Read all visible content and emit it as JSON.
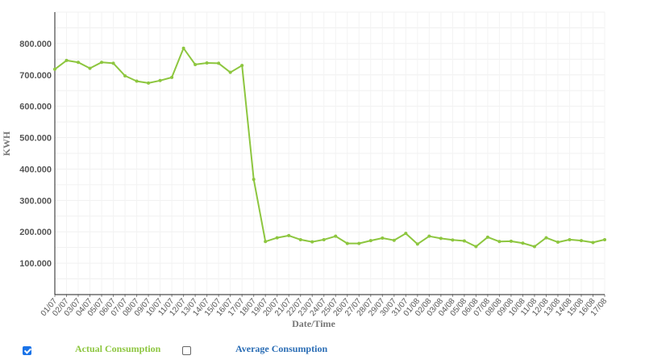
{
  "chart_data": {
    "type": "line",
    "xlabel": "Date/Time",
    "ylabel": "KWH",
    "ylim": [
      0,
      900000
    ],
    "yticks": [
      100000,
      200000,
      300000,
      400000,
      500000,
      600000,
      700000,
      800000
    ],
    "ytick_labels": [
      "100.000",
      "200.000",
      "300.000",
      "400.000",
      "500.000",
      "600.000",
      "700.000",
      "800.000"
    ],
    "grid": true,
    "categories": [
      "01/07",
      "02/07",
      "03/07",
      "04/07",
      "05/07",
      "06/07",
      "07/07",
      "08/07",
      "09/07",
      "10/07",
      "11/07",
      "12/07",
      "13/07",
      "14/07",
      "15/07",
      "16/07",
      "17/07",
      "18/07",
      "19/07",
      "20/07",
      "21/07",
      "22/07",
      "23/07",
      "24/07",
      "25/07",
      "26/07",
      "27/07",
      "28/07",
      "29/07",
      "30/07",
      "31/07",
      "01/08",
      "02/08",
      "03/08",
      "04/08",
      "05/08",
      "06/08",
      "07/08",
      "08/08",
      "09/08",
      "10/08",
      "11/08",
      "12/08",
      "13/08",
      "14/08",
      "15/08",
      "16/08",
      "17/08"
    ],
    "series": [
      {
        "name": "Actual Consumption",
        "color": "#8dc63f",
        "values": [
          718000,
          746000,
          740000,
          721000,
          740000,
          737000,
          697000,
          680000,
          674000,
          682000,
          692000,
          785000,
          733000,
          738000,
          737000,
          708000,
          730000,
          367000,
          169000,
          181000,
          188000,
          175000,
          168000,
          175000,
          186000,
          163000,
          163000,
          172000,
          180000,
          173000,
          195000,
          161000,
          186000,
          179000,
          174000,
          171000,
          153000,
          183000,
          169000,
          170000,
          164000,
          153000,
          181000,
          167000,
          175000,
          172000,
          166000,
          175000
        ]
      }
    ]
  },
  "legend": {
    "items": [
      {
        "label": "Actual Consumption",
        "checked": true,
        "color": "#8dc63f"
      },
      {
        "label": "Average Consumption",
        "checked": false,
        "color": "#2a6db5"
      }
    ]
  }
}
